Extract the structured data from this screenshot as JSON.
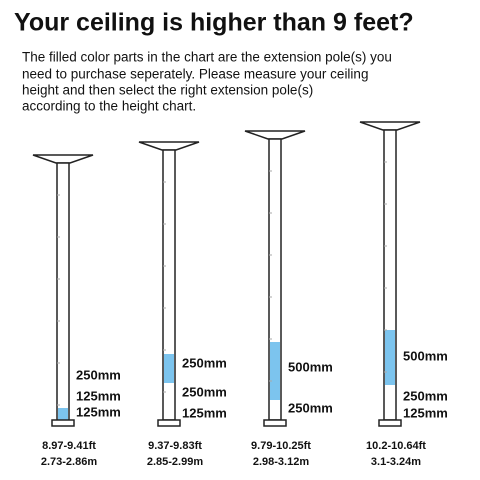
{
  "header": {
    "title": "Your ceiling is higher than 9 feet?",
    "description": [
      "The filled color parts in the chart are the extension pole(s) you",
      "need to purchase seperately.  Please measure your ceiling",
      "height and then select the right extension pole(s)",
      "according to the height chart."
    ]
  },
  "poles": [
    {
      "segments": [
        "250mm",
        "125mm",
        "125mm"
      ],
      "feet": "8.97-9.41ft",
      "meters": "2.73-2.86m"
    },
    {
      "segments": [
        "250mm",
        "250mm",
        "125mm"
      ],
      "feet": "9.37-9.83ft",
      "meters": "2.85-2.99m"
    },
    {
      "segments": [
        "500mm",
        "250mm"
      ],
      "feet": "9.79-10.25ft",
      "meters": "2.98-3.12m"
    },
    {
      "segments": [
        "500mm",
        "250mm",
        "125mm"
      ],
      "feet": "10.2-10.64ft",
      "meters": "3.1-3.24m"
    }
  ]
}
